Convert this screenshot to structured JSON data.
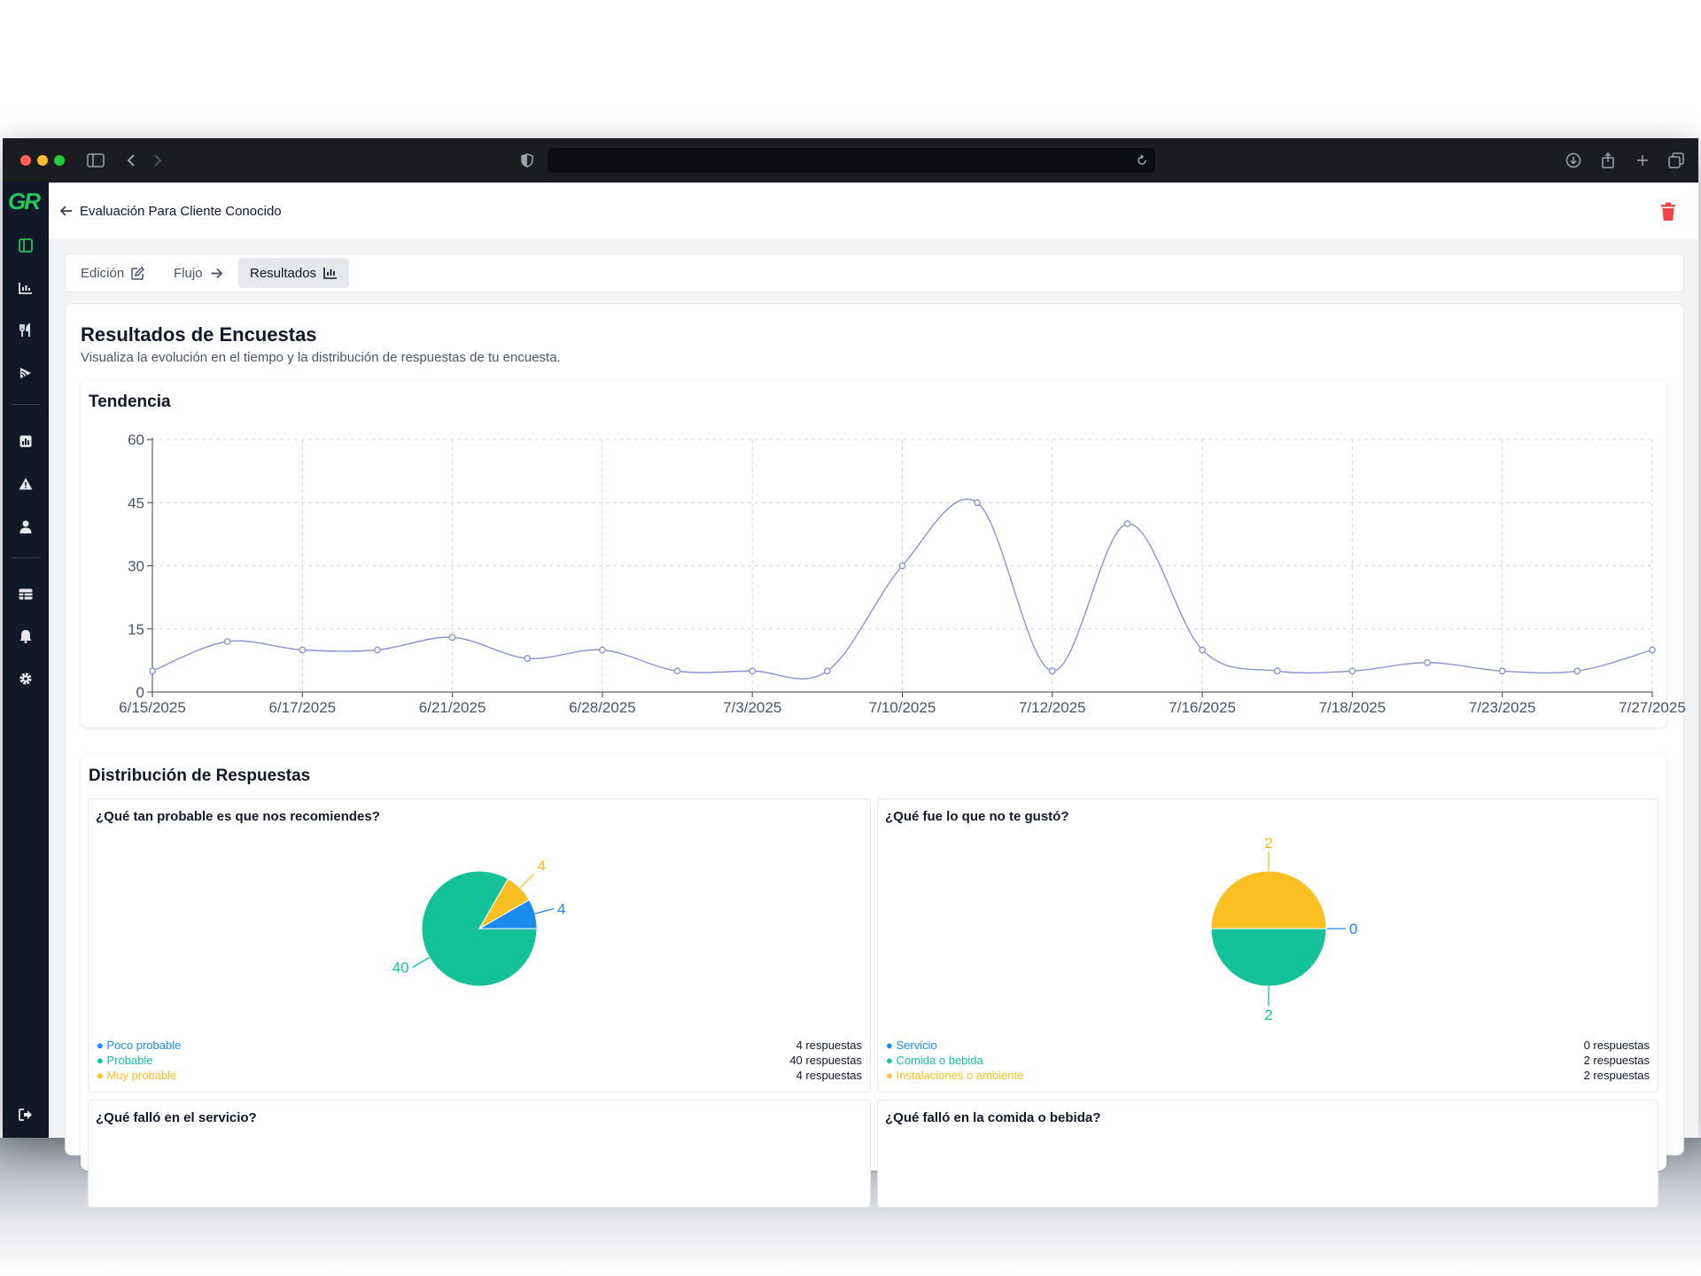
{
  "app": {
    "page_title": "Evaluación Para Cliente Conocido",
    "logo_text": "GR"
  },
  "tabs": [
    {
      "label": "Edición",
      "icon": "edit-icon"
    },
    {
      "label": "Flujo",
      "icon": "arrow-right-icon"
    },
    {
      "label": "Resultados",
      "icon": "bar-chart-icon"
    }
  ],
  "content": {
    "title": "Resultados de Encuestas",
    "subtitle": "Visualiza la evolución en el tiempo y la distribución de respuestas de tu encuesta."
  },
  "trend": {
    "title": "Tendencia"
  },
  "distribution": {
    "title": "Distribución de Respuestas"
  },
  "sidebar_icons": [
    "layout-icon",
    "chart-icon",
    "utensils-icon",
    "rss-icon",
    "image-chart-icon",
    "warning-icon",
    "user-icon",
    "table-icon",
    "bell-icon",
    "gear-icon",
    "logout-icon"
  ],
  "colors": {
    "line": "#8b93d1",
    "teal": "#14c29a",
    "blue": "#1a8cf0",
    "yellow": "#fbbf24",
    "danger": "#ef4444"
  },
  "chart_data": [
    {
      "type": "line",
      "title": "Tendencia",
      "x_ticks": [
        "6/15/2025",
        "6/17/2025",
        "6/21/2025",
        "6/28/2025",
        "7/3/2025",
        "7/10/2025",
        "7/12/2025",
        "7/16/2025",
        "7/18/2025",
        "7/23/2025",
        "7/27/2025"
      ],
      "values": [
        5,
        12,
        10,
        10,
        13,
        8,
        10,
        5,
        5,
        5,
        30,
        45,
        5,
        40,
        10,
        5,
        5,
        7,
        5,
        5,
        10
      ],
      "ylim": [
        0,
        60
      ],
      "y_ticks": [
        0,
        15,
        30,
        45,
        60
      ],
      "grid": true
    },
    {
      "type": "pie",
      "title": "¿Qué tan probable es que nos recomiendes?",
      "slices": [
        {
          "label": "Poco probable",
          "value": 4,
          "color": "#1a8cf0",
          "count_text": "4 respuestas"
        },
        {
          "label": "Probable",
          "value": 40,
          "color": "#14c29a",
          "count_text": "40 respuestas"
        },
        {
          "label": "Muy probable",
          "value": 4,
          "color": "#fbbf24",
          "count_text": "4 respuestas"
        }
      ]
    },
    {
      "type": "pie",
      "title": "¿Qué fue lo que no te gustó?",
      "slices": [
        {
          "label": "Servicio",
          "value": 0,
          "color": "#1a8cf0",
          "count_text": "0 respuestas"
        },
        {
          "label": "Comida o bebida",
          "value": 2,
          "color": "#14c29a",
          "count_text": "2 respuestas"
        },
        {
          "label": "Instalaciones o ambiente",
          "value": 2,
          "color": "#fbbf24",
          "count_text": "2 respuestas"
        }
      ]
    }
  ],
  "more_questions": [
    "¿Qué falló en el servicio?",
    "¿Qué falló en la comida o bebida?"
  ]
}
